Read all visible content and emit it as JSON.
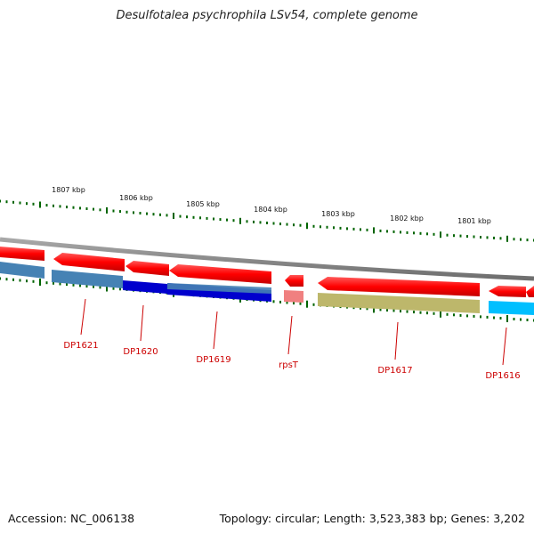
{
  "title": "Desulfotalea psychrophila LSv54, complete genome",
  "accession": "Accession: NC_006138",
  "topology": "Topology: circular; Length: 3,523,383 bp; Genes: 3,202",
  "colors": {
    "forward_gene": "#ff0000",
    "backbone": "#808080",
    "tick": "#006400",
    "label": "#cc0000"
  },
  "scale_labels": [
    "1807 kbp",
    "1806 kbp",
    "1805 kbp",
    "1804 kbp",
    "1803 kbp",
    "1802 kbp",
    "1801 kbp"
  ],
  "genes": [
    {
      "label": "DP1621",
      "strand": "reverse",
      "color": "#4682b4"
    },
    {
      "label": "DP1620",
      "strand": "reverse",
      "color": "#0000cd"
    },
    {
      "label": "DP1619",
      "strand": "reverse",
      "color": "#0000cd"
    },
    {
      "label": "rpsT",
      "strand": "reverse",
      "color": "#f08080"
    },
    {
      "label": "DP1617",
      "strand": "reverse",
      "color": "#bdb76b"
    },
    {
      "label": "DP1616",
      "strand": "reverse",
      "color": "#00bfff"
    }
  ]
}
